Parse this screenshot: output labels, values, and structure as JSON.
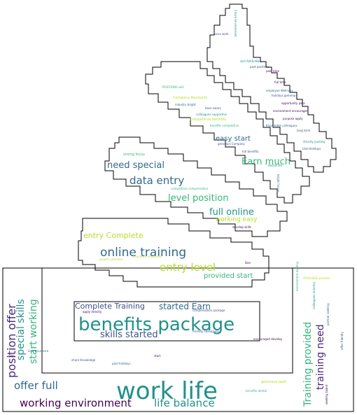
{
  "colors": {
    "teal": "#21918c",
    "green": "#35b779",
    "blue": "#3b528b",
    "purple": "#440154",
    "indigo": "#31688e",
    "lime": "#b5de2b",
    "deep": "#482878",
    "outline": "#000000"
  },
  "words": [
    {
      "text": "work life",
      "color": "teal"
    },
    {
      "text": "benefits package",
      "color": "teal"
    },
    {
      "text": "online training",
      "color": "indigo"
    },
    {
      "text": "data entry",
      "color": "indigo"
    },
    {
      "text": "working environment",
      "color": "purple"
    },
    {
      "text": "life balance",
      "color": "teal"
    },
    {
      "text": "offer full",
      "color": "indigo"
    },
    {
      "text": "position offer",
      "color": "deep"
    },
    {
      "text": "special skills",
      "color": "teal"
    },
    {
      "text": "start working",
      "color": "green"
    },
    {
      "text": "Training provided",
      "color": "green"
    },
    {
      "text": "training need",
      "color": "deep"
    },
    {
      "text": "entry level",
      "color": "lime"
    },
    {
      "text": "need special",
      "color": "indigo"
    },
    {
      "text": "level position",
      "color": "green"
    },
    {
      "text": "full online",
      "color": "teal"
    },
    {
      "text": "Earn much",
      "color": "green"
    },
    {
      "text": "skills started",
      "color": "blue"
    },
    {
      "text": "started Earn",
      "color": "indigo"
    },
    {
      "text": "Complete Training",
      "color": "blue"
    },
    {
      "text": "entry Complete",
      "color": "lime"
    },
    {
      "text": "provided start",
      "color": "green"
    },
    {
      "text": "easy start",
      "color": "indigo"
    },
    {
      "text": "working easy",
      "color": "lime"
    },
    {
      "text": "focus work",
      "color": "blue"
    },
    {
      "text": "future environment",
      "color": "teal"
    },
    {
      "text": "skill AVAILABLE",
      "color": "teal"
    },
    {
      "text": "past positions",
      "color": "blue"
    },
    {
      "text": "paid time",
      "color": "purple"
    },
    {
      "text": "full time",
      "color": "purple"
    },
    {
      "text": "POSITIONS skill",
      "color": "green"
    },
    {
      "text": "employee Wellness",
      "color": "indigo"
    },
    {
      "text": "holidays generous",
      "color": "blue"
    },
    {
      "text": "Company discounts",
      "color": "lime"
    },
    {
      "text": "industry bright",
      "color": "indigo"
    },
    {
      "text": "opportunity pass",
      "color": "purple"
    },
    {
      "text": "base salary",
      "color": "blue"
    },
    {
      "text": "environment encouraged",
      "color": "purple"
    },
    {
      "text": "colleagues supportive",
      "color": "teal"
    },
    {
      "text": "Competitive benefits",
      "color": "lime"
    },
    {
      "text": "purpose apply",
      "color": "purple"
    },
    {
      "text": "Knowledge colleagues",
      "color": "indigo"
    },
    {
      "text": "long term",
      "color": "blue"
    },
    {
      "text": "benefits competitive",
      "color": "green"
    },
    {
      "text": "generous Company",
      "color": "blue"
    },
    {
      "text": "directly posting",
      "color": "teal"
    },
    {
      "text": "Like Holidays",
      "color": "blue"
    },
    {
      "text": "full benefits",
      "color": "blue"
    },
    {
      "text": "strong focus",
      "color": "green"
    },
    {
      "text": "dental life",
      "color": "teal"
    },
    {
      "text": "bright future",
      "color": "indigo"
    },
    {
      "text": "competitive compensation",
      "color": "green"
    },
    {
      "text": "develop skills",
      "color": "purple"
    },
    {
      "text": "Insurance employee",
      "color": "lime"
    },
    {
      "text": "growth potential",
      "color": "lime"
    },
    {
      "text": "compensation package",
      "color": "blue"
    },
    {
      "text": "friendly colleagues",
      "color": "blue"
    },
    {
      "text": "apply directly",
      "color": "purple"
    },
    {
      "text": "encouraged develop",
      "color": "purple"
    },
    {
      "text": "Line insurance",
      "color": "indigo"
    },
    {
      "text": "share Knowledge",
      "color": "blue"
    },
    {
      "text": "paid holidays",
      "color": "indigo"
    },
    {
      "text": "generous paid",
      "color": "lime"
    },
    {
      "text": "environment exciting",
      "color": "green"
    },
    {
      "text": "colleagues industry",
      "color": "teal"
    },
    {
      "text": "partner seeking",
      "color": "indigo"
    },
    {
      "text": "offer friendly",
      "color": "blue"
    },
    {
      "text": "seeking talent",
      "color": "purple"
    },
    {
      "text": "benefits dental",
      "color": "green"
    },
    {
      "text": "AVAILABLE position",
      "color": "lime"
    },
    {
      "text": "plan",
      "color": "purple"
    },
    {
      "text": "start",
      "color": "purple"
    },
    {
      "text": "Don",
      "color": "purple"
    },
    {
      "text": "your",
      "color": "purple"
    }
  ]
}
